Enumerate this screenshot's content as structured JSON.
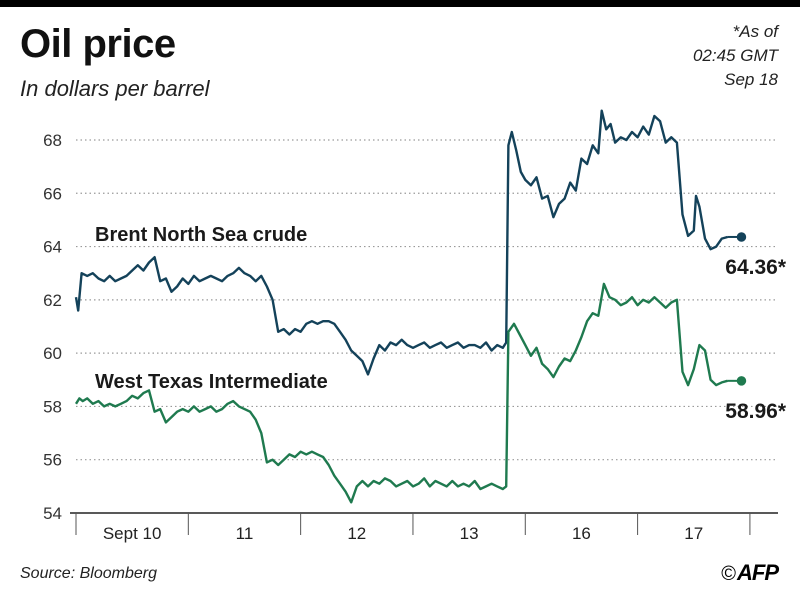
{
  "header": {
    "title": "Oil price",
    "subtitle": "In dollars per barrel",
    "asof_lines": [
      "*As of",
      "02:45 GMT",
      "Sep 18"
    ]
  },
  "footer": {
    "source": "Source: Bloomberg",
    "copyright_symbol": "©",
    "logo": "AFP"
  },
  "colors": {
    "brent": "#14425a",
    "wti": "#1f7a4f",
    "grid": "#9a9a9a"
  },
  "chart_data": {
    "type": "line",
    "title": "Oil price",
    "ylabel": "In dollars per barrel",
    "ylim": [
      54,
      69.5
    ],
    "yticks": [
      54,
      56,
      58,
      60,
      62,
      64,
      66,
      68
    ],
    "xlim": [
      0,
      6.25
    ],
    "x_ticks": [
      {
        "x": 0,
        "label": ""
      },
      {
        "x": 1,
        "label": "Sept 10"
      },
      {
        "x": 2,
        "label": "11"
      },
      {
        "x": 3,
        "label": "12"
      },
      {
        "x": 4,
        "label": "13"
      },
      {
        "x": 5,
        "label": "16"
      },
      {
        "x": 6,
        "label": "17"
      }
    ],
    "grid": "horizontal dotted",
    "series": [
      {
        "name": "Brent North Sea crude",
        "end_label": "64.36*",
        "points": [
          [
            0.0,
            62.1
          ],
          [
            0.02,
            61.6
          ],
          [
            0.05,
            63.0
          ],
          [
            0.1,
            62.9
          ],
          [
            0.15,
            63.0
          ],
          [
            0.2,
            62.8
          ],
          [
            0.25,
            62.7
          ],
          [
            0.3,
            62.9
          ],
          [
            0.35,
            62.7
          ],
          [
            0.4,
            62.8
          ],
          [
            0.45,
            62.9
          ],
          [
            0.5,
            63.1
          ],
          [
            0.55,
            63.3
          ],
          [
            0.6,
            63.1
          ],
          [
            0.65,
            63.4
          ],
          [
            0.7,
            63.6
          ],
          [
            0.75,
            62.7
          ],
          [
            0.8,
            62.8
          ],
          [
            0.85,
            62.3
          ],
          [
            0.9,
            62.5
          ],
          [
            0.95,
            62.8
          ],
          [
            1.0,
            62.6
          ],
          [
            1.05,
            62.9
          ],
          [
            1.1,
            62.7
          ],
          [
            1.15,
            62.8
          ],
          [
            1.2,
            62.9
          ],
          [
            1.25,
            62.8
          ],
          [
            1.3,
            62.7
          ],
          [
            1.35,
            62.9
          ],
          [
            1.4,
            63.0
          ],
          [
            1.45,
            63.2
          ],
          [
            1.5,
            63.0
          ],
          [
            1.55,
            62.9
          ],
          [
            1.6,
            62.7
          ],
          [
            1.65,
            62.9
          ],
          [
            1.7,
            62.5
          ],
          [
            1.75,
            62.0
          ],
          [
            1.8,
            60.8
          ],
          [
            1.85,
            60.9
          ],
          [
            1.9,
            60.7
          ],
          [
            1.95,
            60.9
          ],
          [
            2.0,
            60.8
          ],
          [
            2.05,
            61.1
          ],
          [
            2.1,
            61.2
          ],
          [
            2.15,
            61.1
          ],
          [
            2.2,
            61.2
          ],
          [
            2.25,
            61.2
          ],
          [
            2.3,
            61.1
          ],
          [
            2.35,
            60.8
          ],
          [
            2.4,
            60.5
          ],
          [
            2.45,
            60.1
          ],
          [
            2.5,
            59.9
          ],
          [
            2.55,
            59.7
          ],
          [
            2.6,
            59.2
          ],
          [
            2.65,
            59.8
          ],
          [
            2.7,
            60.3
          ],
          [
            2.75,
            60.1
          ],
          [
            2.8,
            60.4
          ],
          [
            2.85,
            60.3
          ],
          [
            2.9,
            60.5
          ],
          [
            2.95,
            60.3
          ],
          [
            3.0,
            60.2
          ],
          [
            3.05,
            60.3
          ],
          [
            3.1,
            60.4
          ],
          [
            3.15,
            60.2
          ],
          [
            3.2,
            60.3
          ],
          [
            3.25,
            60.4
          ],
          [
            3.3,
            60.2
          ],
          [
            3.35,
            60.3
          ],
          [
            3.4,
            60.4
          ],
          [
            3.45,
            60.2
          ],
          [
            3.5,
            60.3
          ],
          [
            3.55,
            60.3
          ],
          [
            3.6,
            60.2
          ],
          [
            3.65,
            60.4
          ],
          [
            3.7,
            60.1
          ],
          [
            3.75,
            60.3
          ],
          [
            3.8,
            60.2
          ],
          [
            3.83,
            60.4
          ],
          [
            3.85,
            67.8
          ],
          [
            3.88,
            68.3
          ],
          [
            3.92,
            67.6
          ],
          [
            3.96,
            66.8
          ],
          [
            4.0,
            66.5
          ],
          [
            4.05,
            66.3
          ],
          [
            4.1,
            66.6
          ],
          [
            4.15,
            65.8
          ],
          [
            4.2,
            65.9
          ],
          [
            4.25,
            65.1
          ],
          [
            4.3,
            65.6
          ],
          [
            4.35,
            65.8
          ],
          [
            4.4,
            66.4
          ],
          [
            4.45,
            66.1
          ],
          [
            4.5,
            67.3
          ],
          [
            4.55,
            67.1
          ],
          [
            4.6,
            67.8
          ],
          [
            4.65,
            67.5
          ],
          [
            4.68,
            69.1
          ],
          [
            4.72,
            68.4
          ],
          [
            4.76,
            68.6
          ],
          [
            4.8,
            67.9
          ],
          [
            4.85,
            68.1
          ],
          [
            4.9,
            68.0
          ],
          [
            4.95,
            68.3
          ],
          [
            5.0,
            68.1
          ],
          [
            5.05,
            68.5
          ],
          [
            5.1,
            68.2
          ],
          [
            5.15,
            68.9
          ],
          [
            5.2,
            68.7
          ],
          [
            5.25,
            67.9
          ],
          [
            5.3,
            68.1
          ],
          [
            5.35,
            67.9
          ],
          [
            5.4,
            65.2
          ],
          [
            5.45,
            64.4
          ],
          [
            5.5,
            64.6
          ],
          [
            5.52,
            65.9
          ],
          [
            5.55,
            65.5
          ],
          [
            5.6,
            64.3
          ],
          [
            5.65,
            63.9
          ],
          [
            5.7,
            64.0
          ],
          [
            5.75,
            64.3
          ],
          [
            5.8,
            64.36
          ]
        ]
      },
      {
        "name": "West Texas Intermediate",
        "end_label": "58.96*",
        "points": [
          [
            0.0,
            58.1
          ],
          [
            0.03,
            58.3
          ],
          [
            0.06,
            58.2
          ],
          [
            0.1,
            58.3
          ],
          [
            0.15,
            58.1
          ],
          [
            0.2,
            58.2
          ],
          [
            0.25,
            58.0
          ],
          [
            0.3,
            58.1
          ],
          [
            0.35,
            58.0
          ],
          [
            0.4,
            58.1
          ],
          [
            0.45,
            58.2
          ],
          [
            0.5,
            58.4
          ],
          [
            0.55,
            58.3
          ],
          [
            0.6,
            58.5
          ],
          [
            0.65,
            58.6
          ],
          [
            0.7,
            57.8
          ],
          [
            0.75,
            57.9
          ],
          [
            0.8,
            57.4
          ],
          [
            0.85,
            57.6
          ],
          [
            0.9,
            57.8
          ],
          [
            0.95,
            57.9
          ],
          [
            1.0,
            57.8
          ],
          [
            1.05,
            58.0
          ],
          [
            1.1,
            57.8
          ],
          [
            1.15,
            57.9
          ],
          [
            1.2,
            58.0
          ],
          [
            1.25,
            57.8
          ],
          [
            1.3,
            57.9
          ],
          [
            1.35,
            58.1
          ],
          [
            1.4,
            58.2
          ],
          [
            1.45,
            58.0
          ],
          [
            1.5,
            57.9
          ],
          [
            1.55,
            57.8
          ],
          [
            1.6,
            57.5
          ],
          [
            1.65,
            57.0
          ],
          [
            1.7,
            55.9
          ],
          [
            1.75,
            56.0
          ],
          [
            1.8,
            55.8
          ],
          [
            1.85,
            56.0
          ],
          [
            1.9,
            56.2
          ],
          [
            1.95,
            56.1
          ],
          [
            2.0,
            56.3
          ],
          [
            2.05,
            56.2
          ],
          [
            2.1,
            56.3
          ],
          [
            2.15,
            56.2
          ],
          [
            2.2,
            56.1
          ],
          [
            2.25,
            55.8
          ],
          [
            2.3,
            55.4
          ],
          [
            2.35,
            55.1
          ],
          [
            2.4,
            54.8
          ],
          [
            2.45,
            54.4
          ],
          [
            2.5,
            55.0
          ],
          [
            2.55,
            55.2
          ],
          [
            2.6,
            55.0
          ],
          [
            2.65,
            55.2
          ],
          [
            2.7,
            55.1
          ],
          [
            2.75,
            55.3
          ],
          [
            2.8,
            55.2
          ],
          [
            2.85,
            55.0
          ],
          [
            2.9,
            55.1
          ],
          [
            2.95,
            55.2
          ],
          [
            3.0,
            55.0
          ],
          [
            3.05,
            55.1
          ],
          [
            3.1,
            55.3
          ],
          [
            3.15,
            55.0
          ],
          [
            3.2,
            55.2
          ],
          [
            3.25,
            55.1
          ],
          [
            3.3,
            55.0
          ],
          [
            3.35,
            55.2
          ],
          [
            3.4,
            55.0
          ],
          [
            3.45,
            55.1
          ],
          [
            3.5,
            55.0
          ],
          [
            3.55,
            55.2
          ],
          [
            3.6,
            54.9
          ],
          [
            3.65,
            55.0
          ],
          [
            3.7,
            55.1
          ],
          [
            3.75,
            55.0
          ],
          [
            3.8,
            54.9
          ],
          [
            3.83,
            55.0
          ],
          [
            3.85,
            60.8
          ],
          [
            3.9,
            61.1
          ],
          [
            3.95,
            60.7
          ],
          [
            4.0,
            60.3
          ],
          [
            4.05,
            59.9
          ],
          [
            4.1,
            60.2
          ],
          [
            4.15,
            59.6
          ],
          [
            4.2,
            59.4
          ],
          [
            4.25,
            59.1
          ],
          [
            4.3,
            59.5
          ],
          [
            4.35,
            59.8
          ],
          [
            4.4,
            59.7
          ],
          [
            4.45,
            60.1
          ],
          [
            4.5,
            60.6
          ],
          [
            4.55,
            61.2
          ],
          [
            4.6,
            61.5
          ],
          [
            4.65,
            61.4
          ],
          [
            4.7,
            62.6
          ],
          [
            4.75,
            62.1
          ],
          [
            4.8,
            62.0
          ],
          [
            4.85,
            61.8
          ],
          [
            4.9,
            61.9
          ],
          [
            4.95,
            62.1
          ],
          [
            5.0,
            61.8
          ],
          [
            5.05,
            62.0
          ],
          [
            5.1,
            61.9
          ],
          [
            5.15,
            62.1
          ],
          [
            5.2,
            61.9
          ],
          [
            5.25,
            61.7
          ],
          [
            5.3,
            61.9
          ],
          [
            5.35,
            62.0
          ],
          [
            5.4,
            59.3
          ],
          [
            5.45,
            58.8
          ],
          [
            5.5,
            59.4
          ],
          [
            5.55,
            60.3
          ],
          [
            5.6,
            60.1
          ],
          [
            5.65,
            59.0
          ],
          [
            5.7,
            58.8
          ],
          [
            5.75,
            58.9
          ],
          [
            5.8,
            58.96
          ]
        ]
      }
    ]
  }
}
